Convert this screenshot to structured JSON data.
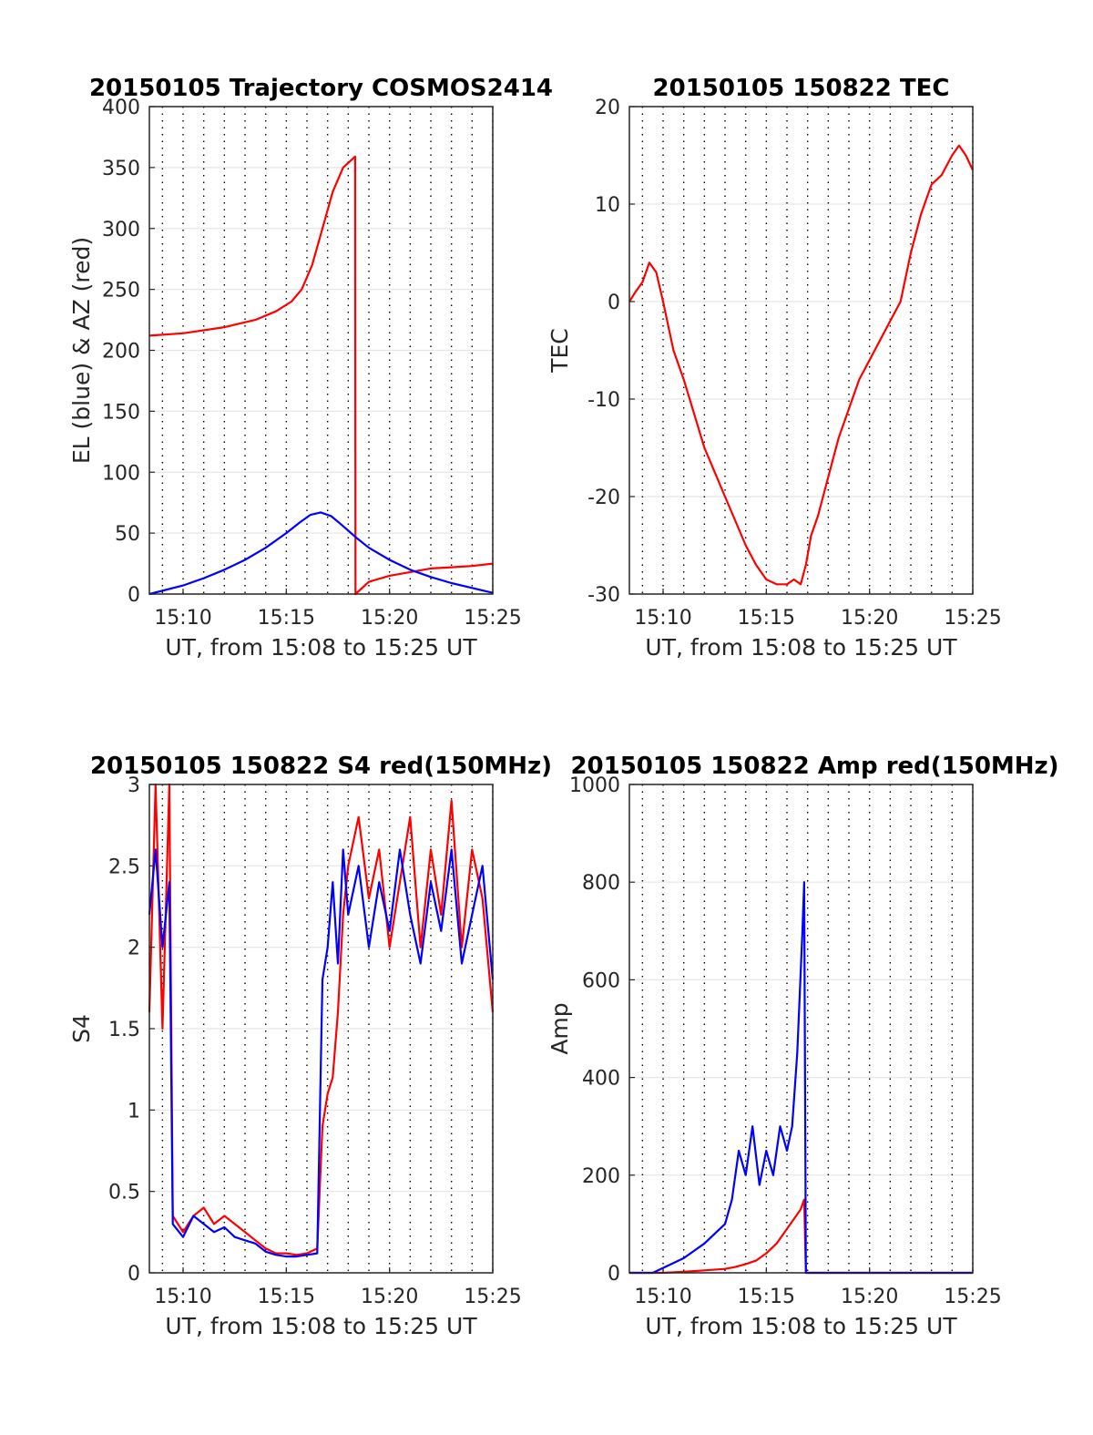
{
  "figure": {
    "colors": {
      "red": "#ff0000",
      "blue": "#0000ff",
      "grid": "#e6e6e6",
      "axis": "#262626"
    }
  },
  "chart_data": [
    {
      "type": "line",
      "title": "20150105 Trajectory COSMOS2414",
      "xlabel": "UT, from 15:08 to 15:25 UT",
      "ylabel": "EL (blue) & AZ (red)",
      "xlim": [
        "15:08:22",
        "15:25:00"
      ],
      "ylim": [
        0,
        400
      ],
      "xticks": [
        "15:10",
        "15:15",
        "15:20",
        "15:25"
      ],
      "yticks": [
        "0",
        "50",
        "100",
        "150",
        "200",
        "250",
        "300",
        "350",
        "400"
      ],
      "grid": true,
      "series": [
        {
          "color": "#ff0000",
          "x": [
            "15:08:22",
            "15:10:00",
            "15:12:00",
            "15:13:30",
            "15:14:30",
            "15:15:15",
            "15:15:45",
            "15:16:15",
            "15:16:45",
            "15:17:15",
            "15:17:45",
            "15:18:20",
            "15:18:21",
            "15:19:00",
            "15:20:00",
            "15:21:00",
            "15:22:00",
            "15:23:00",
            "15:24:00",
            "15:25:00"
          ],
          "y": [
            212,
            214,
            219,
            225,
            232,
            240,
            250,
            270,
            300,
            330,
            350,
            359,
            0,
            10,
            15,
            18,
            21,
            22,
            23,
            25
          ]
        },
        {
          "color": "#0000ff",
          "x": [
            "15:08:22",
            "15:10:00",
            "15:11:00",
            "15:12:00",
            "15:13:00",
            "15:14:00",
            "15:15:00",
            "15:15:40",
            "15:16:10",
            "15:16:40",
            "15:17:10",
            "15:17:40",
            "15:18:20",
            "15:19:00",
            "15:20:00",
            "15:21:00",
            "15:22:00",
            "15:23:00",
            "15:24:00",
            "15:25:00"
          ],
          "y": [
            0,
            7,
            13,
            20,
            28,
            38,
            50,
            59,
            65,
            67,
            64,
            57,
            47,
            38,
            28,
            20,
            14,
            9,
            5,
            1
          ]
        }
      ]
    },
    {
      "type": "line",
      "title": "20150105 150822 TEC",
      "xlabel": "UT, from 15:08 to 15:25 UT",
      "ylabel": "TEC",
      "xlim": [
        "15:08:22",
        "15:25:00"
      ],
      "ylim": [
        -30,
        20
      ],
      "xticks": [
        "15:10",
        "15:15",
        "15:20",
        "15:25"
      ],
      "yticks": [
        "-30",
        "-20",
        "-10",
        "0",
        "10",
        "20"
      ],
      "grid": true,
      "series": [
        {
          "color": "#ff0000",
          "x": [
            "15:08:22",
            "15:08:40",
            "15:09:00",
            "15:09:20",
            "15:09:40",
            "15:10:00",
            "15:10:30",
            "15:11:00",
            "15:12:00",
            "15:13:00",
            "15:14:00",
            "15:14:30",
            "15:15:00",
            "15:15:30",
            "15:16:00",
            "15:16:20",
            "15:16:40",
            "15:16:55",
            "15:17:10",
            "15:17:30",
            "15:18:00",
            "15:18:30",
            "15:19:00",
            "15:19:30",
            "15:20:00",
            "15:20:30",
            "15:21:00",
            "15:21:30",
            "15:22:00",
            "15:22:30",
            "15:23:00",
            "15:23:30",
            "15:24:00",
            "15:24:20",
            "15:24:40",
            "15:25:00"
          ],
          "y": [
            0,
            1,
            2,
            4,
            3,
            0,
            -5,
            -8,
            -15,
            -20,
            -25,
            -27,
            -28.5,
            -29,
            -29,
            -28.5,
            -29,
            -27,
            -24,
            -22,
            -18,
            -14,
            -11,
            -8,
            -6,
            -4,
            -2,
            0,
            5,
            9,
            12,
            13,
            15,
            16,
            15,
            13.5
          ]
        }
      ]
    },
    {
      "type": "line",
      "title": "20150105 150822 S4 red(150MHz)",
      "xlabel": "UT, from 15:08 to 15:25 UT",
      "ylabel": "S4",
      "xlim": [
        "15:08:22",
        "15:25:00"
      ],
      "ylim": [
        0,
        3
      ],
      "xticks": [
        "15:10",
        "15:15",
        "15:20",
        "15:25"
      ],
      "yticks": [
        "0",
        "0.5",
        "1",
        "1.5",
        "2",
        "2.5",
        "3"
      ],
      "grid": true,
      "series": [
        {
          "color": "#ff0000",
          "x": [
            "15:08:22",
            "15:08:40",
            "15:09:00",
            "15:09:20",
            "15:09:30",
            "15:10:00",
            "15:10:30",
            "15:11:00",
            "15:11:30",
            "15:12:00",
            "15:12:30",
            "15:13:00",
            "15:13:30",
            "15:14:00",
            "15:14:30",
            "15:15:00",
            "15:15:30",
            "15:16:00",
            "15:16:30",
            "15:16:45",
            "15:17:00",
            "15:17:15",
            "15:17:30",
            "15:17:45",
            "15:18:00",
            "15:18:30",
            "15:19:00",
            "15:19:30",
            "15:20:00",
            "15:20:30",
            "15:21:00",
            "15:21:30",
            "15:22:00",
            "15:22:30",
            "15:23:00",
            "15:23:30",
            "15:24:00",
            "15:24:30",
            "15:25:00"
          ],
          "y": [
            1.6,
            3,
            1.5,
            3,
            0.35,
            0.25,
            0.35,
            0.4,
            0.3,
            0.35,
            0.3,
            0.25,
            0.2,
            0.15,
            0.12,
            0.12,
            0.11,
            0.12,
            0.15,
            0.9,
            1.1,
            1.2,
            1.6,
            2.2,
            2.5,
            2.8,
            2.3,
            2.6,
            2.0,
            2.4,
            2.8,
            2.0,
            2.6,
            2.2,
            2.9,
            2.0,
            2.6,
            2.3,
            1.6
          ]
        },
        {
          "color": "#0000ff",
          "x": [
            "15:08:22",
            "15:08:40",
            "15:09:00",
            "15:09:20",
            "15:09:30",
            "15:10:00",
            "15:10:30",
            "15:11:00",
            "15:11:30",
            "15:12:00",
            "15:12:30",
            "15:13:00",
            "15:13:30",
            "15:14:00",
            "15:14:30",
            "15:15:00",
            "15:15:30",
            "15:16:00",
            "15:16:30",
            "15:16:45",
            "15:17:00",
            "15:17:15",
            "15:17:30",
            "15:17:45",
            "15:18:00",
            "15:18:30",
            "15:19:00",
            "15:19:30",
            "15:20:00",
            "15:20:30",
            "15:21:00",
            "15:21:30",
            "15:22:00",
            "15:22:30",
            "15:23:00",
            "15:23:30",
            "15:24:00",
            "15:24:30",
            "15:25:00"
          ],
          "y": [
            2.2,
            2.6,
            2.0,
            2.4,
            0.3,
            0.22,
            0.35,
            0.3,
            0.25,
            0.28,
            0.22,
            0.2,
            0.18,
            0.13,
            0.11,
            0.1,
            0.1,
            0.11,
            0.12,
            1.8,
            2.0,
            2.4,
            1.9,
            2.6,
            2.2,
            2.5,
            2.0,
            2.4,
            2.1,
            2.6,
            2.2,
            1.9,
            2.4,
            2.1,
            2.6,
            1.9,
            2.2,
            2.5,
            1.8
          ]
        }
      ]
    },
    {
      "type": "line",
      "title": "20150105 150822 Amp red(150MHz)",
      "xlabel": "UT, from 15:08 to 15:25 UT",
      "ylabel": "Amp",
      "xlim": [
        "15:08:22",
        "15:25:00"
      ],
      "ylim": [
        0,
        1000
      ],
      "xticks": [
        "15:10",
        "15:15",
        "15:20",
        "15:25"
      ],
      "yticks": [
        "0",
        "200",
        "400",
        "600",
        "800",
        "1000"
      ],
      "grid": true,
      "series": [
        {
          "color": "#ff0000",
          "x": [
            "15:08:22",
            "15:10:00",
            "15:11:00",
            "15:12:00",
            "15:13:00",
            "15:13:30",
            "15:14:00",
            "15:14:30",
            "15:15:00",
            "15:15:30",
            "15:16:00",
            "15:16:20",
            "15:16:40",
            "15:16:50",
            "15:16:55",
            "15:17:10",
            "15:18:00",
            "15:20:00",
            "15:22:00",
            "15:25:00"
          ],
          "y": [
            0,
            0,
            2,
            5,
            8,
            12,
            18,
            25,
            40,
            60,
            90,
            110,
            130,
            150,
            0,
            0,
            0,
            0,
            0,
            0
          ]
        },
        {
          "color": "#0000ff",
          "x": [
            "15:08:22",
            "15:09:30",
            "15:10:00",
            "15:10:30",
            "15:11:00",
            "15:11:30",
            "15:12:00",
            "15:12:30",
            "15:13:00",
            "15:13:20",
            "15:13:40",
            "15:14:00",
            "15:14:20",
            "15:14:40",
            "15:15:00",
            "15:15:20",
            "15:15:40",
            "15:16:00",
            "15:16:15",
            "15:16:30",
            "15:16:45",
            "15:16:50",
            "15:16:55",
            "15:17:10",
            "15:18:00",
            "15:20:00",
            "15:22:00",
            "15:25:00"
          ],
          "y": [
            0,
            0,
            10,
            20,
            30,
            45,
            60,
            80,
            100,
            150,
            250,
            200,
            300,
            180,
            250,
            200,
            300,
            250,
            300,
            450,
            700,
            800,
            0,
            0,
            0,
            0,
            0,
            0
          ]
        }
      ]
    }
  ]
}
